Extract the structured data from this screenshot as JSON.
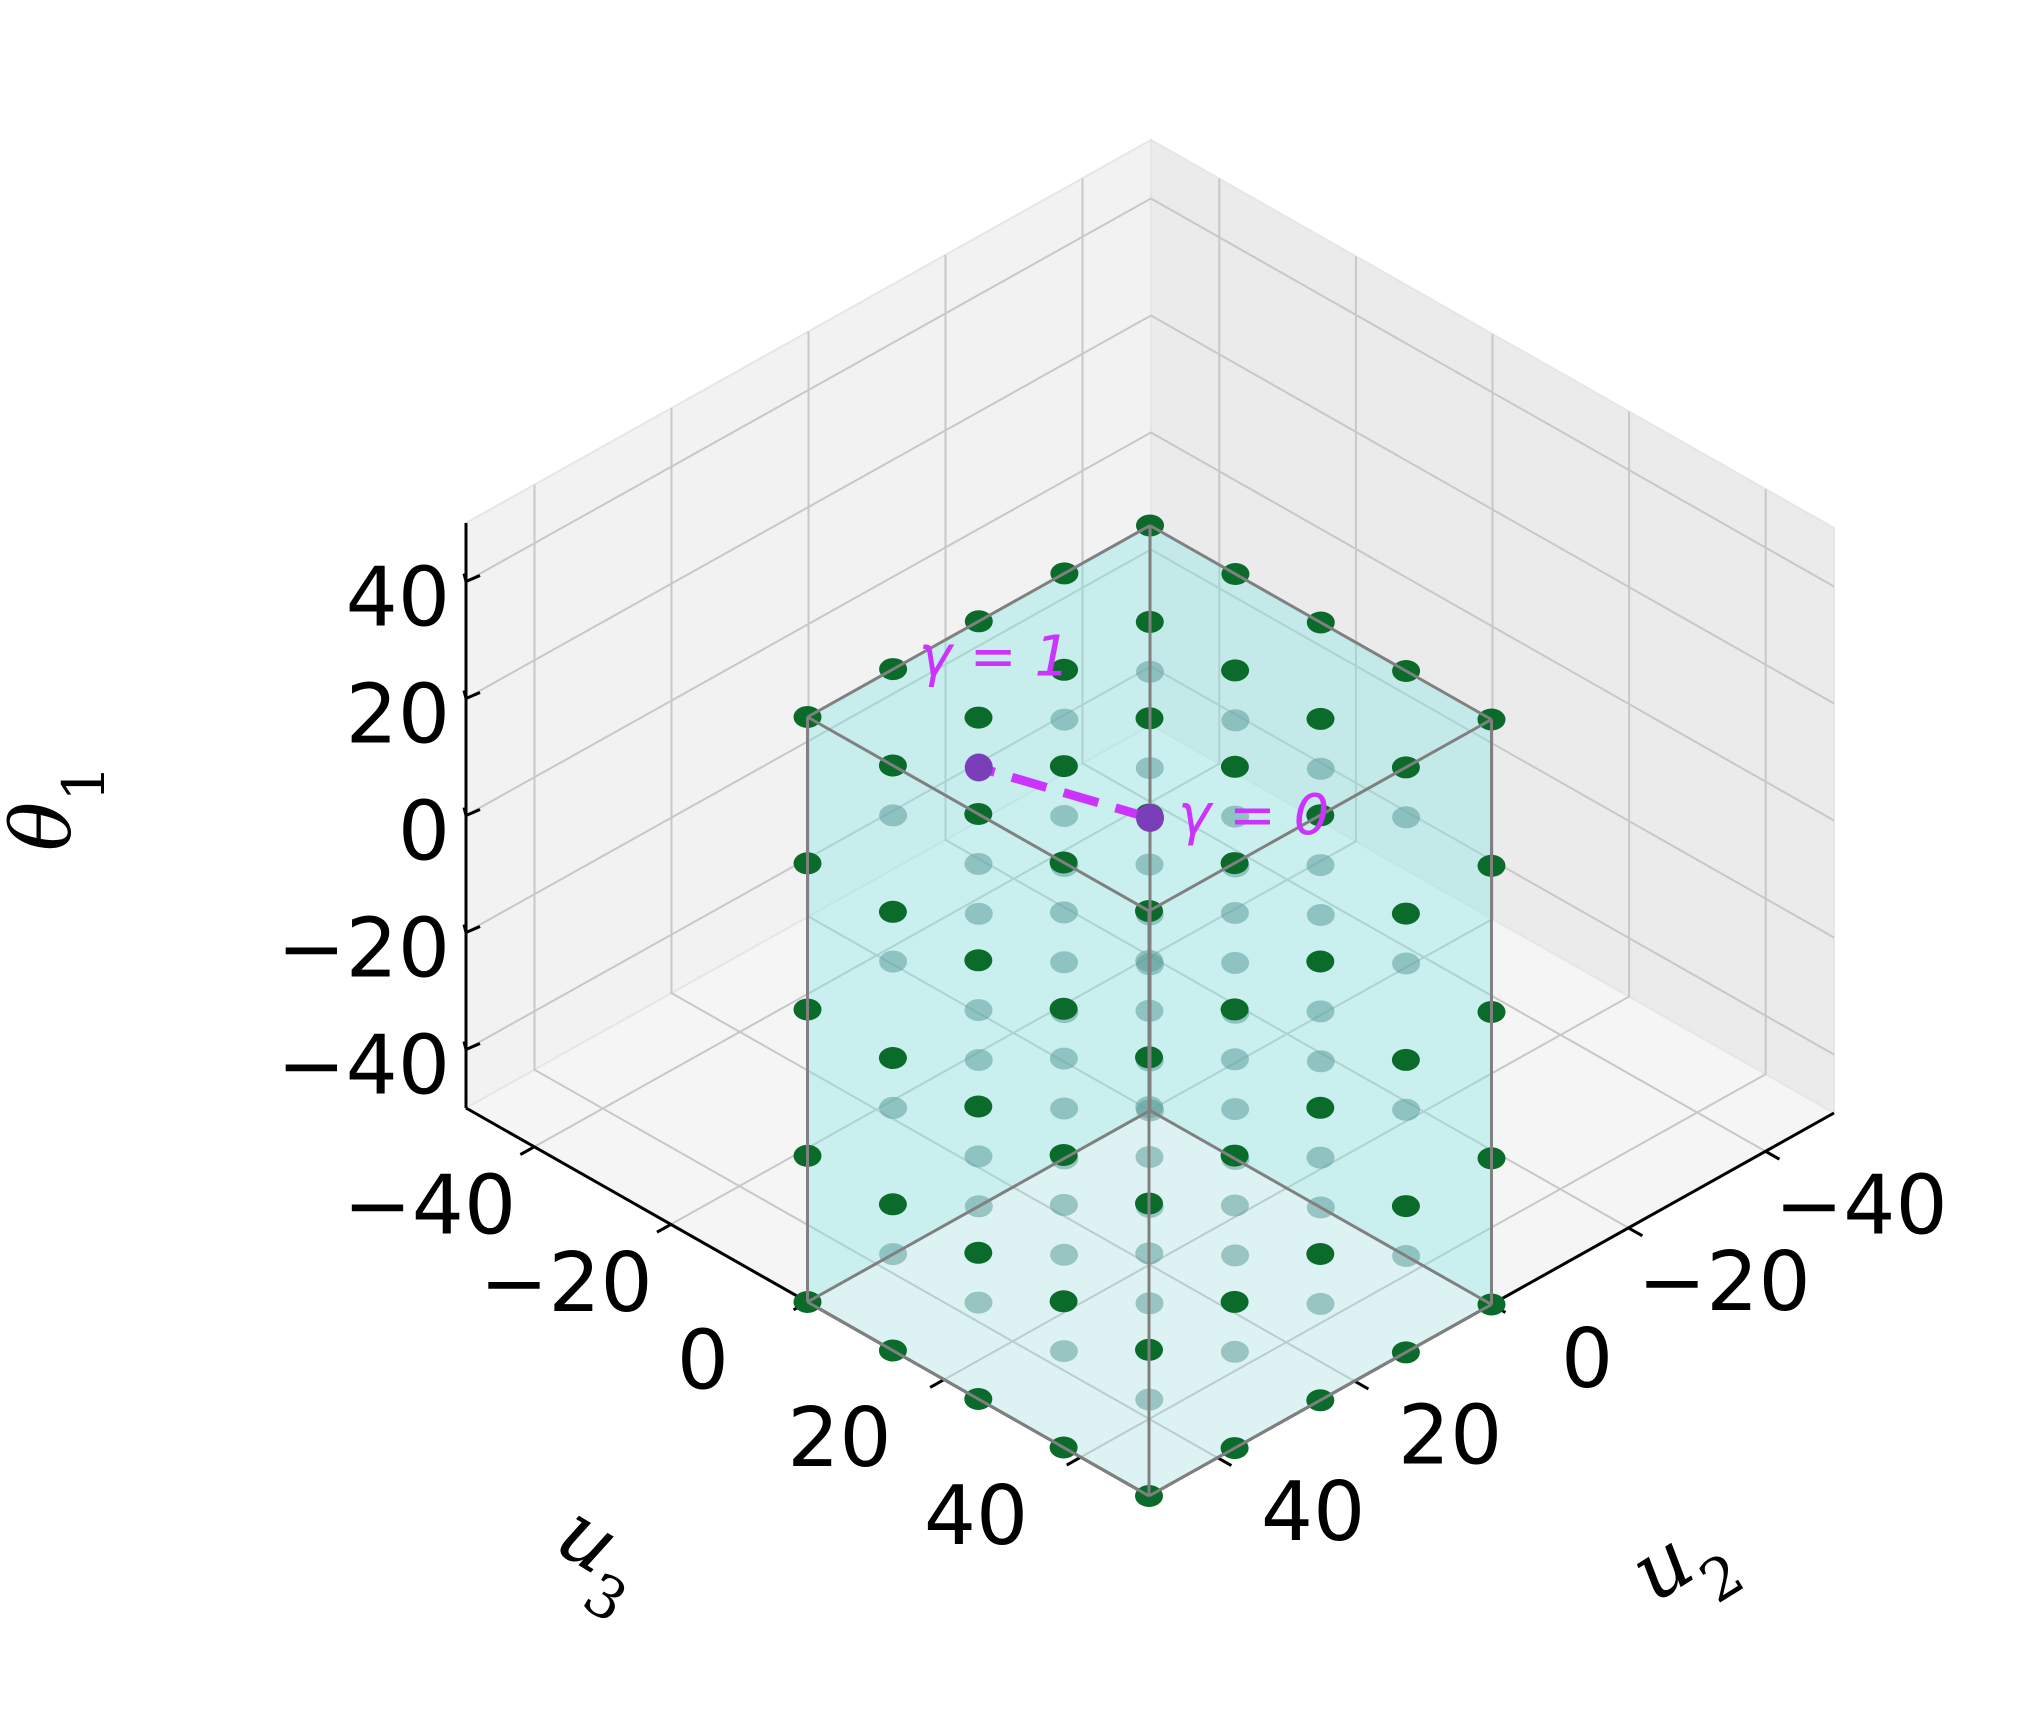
{
  "chart_data": {
    "type": "scatter3d",
    "title": "",
    "axes": {
      "x": {
        "label": "u2",
        "ticks": [
          -40,
          -20,
          0,
          20,
          40
        ],
        "tick_labels": [
          "−40",
          "−20",
          "0",
          "20",
          "40"
        ],
        "range": [
          -50,
          50
        ]
      },
      "y": {
        "label": "u3",
        "ticks": [
          -40,
          -20,
          0,
          20,
          40
        ],
        "tick_labels": [
          "−40",
          "−20",
          "0",
          "20",
          "40"
        ],
        "range": [
          -50,
          50
        ]
      },
      "z": {
        "label": "θ1",
        "ticks": [
          -40,
          -20,
          0,
          20,
          40
        ],
        "tick_labels": [
          "−40",
          "−20",
          "0",
          "20",
          "40"
        ],
        "range": [
          -50,
          50
        ]
      }
    },
    "grid": true,
    "box": {
      "x": [
        0,
        50
      ],
      "y": [
        0,
        50
      ],
      "z": [
        -50,
        50
      ],
      "face_color": "#7fe6e6",
      "edge_color": "#808080"
    },
    "grid_points": {
      "x": [
        0,
        12.5,
        25,
        37.5,
        50
      ],
      "y": [
        0,
        12.5,
        25,
        37.5,
        50
      ],
      "z": [
        -50,
        -25,
        0,
        25,
        50
      ],
      "color": "#0a6b2b"
    },
    "path": {
      "from": {
        "x": 0,
        "y": 0,
        "z": 0,
        "label": "γ = 0"
      },
      "to": {
        "x": 25,
        "y": 0,
        "z": 25,
        "label": "γ = 1"
      },
      "color": "#cc33ff",
      "style": "dashed"
    }
  }
}
